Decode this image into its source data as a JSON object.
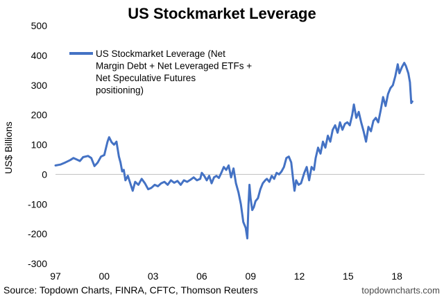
{
  "chart_data": {
    "type": "line",
    "title": "US Stockmarket Leverage",
    "ylabel": "US$ Billions",
    "xlabel": "",
    "ylim": [
      -300,
      500
    ],
    "yticks": [
      500,
      400,
      300,
      200,
      100,
      0,
      -100,
      -200,
      -300
    ],
    "xlim": [
      1997,
      2019.7
    ],
    "xticks": [
      {
        "x": 1997,
        "label": "97"
      },
      {
        "x": 2000,
        "label": "00"
      },
      {
        "x": 2003,
        "label": "03"
      },
      {
        "x": 2006,
        "label": "06"
      },
      {
        "x": 2009,
        "label": "09"
      },
      {
        "x": 2012,
        "label": "12"
      },
      {
        "x": 2015,
        "label": "15"
      },
      {
        "x": 2018,
        "label": "18"
      }
    ],
    "grid": false,
    "legend_position": "top-left",
    "series": [
      {
        "name": "US Stockmarket Leverage (Net Margin Debt + Net Leveraged ETFs + Net Speculative Futures positioning)",
        "color": "#4472c4",
        "points": [
          [
            1997.0,
            30
          ],
          [
            1997.3,
            33
          ],
          [
            1997.6,
            40
          ],
          [
            1997.9,
            48
          ],
          [
            1998.1,
            55
          ],
          [
            1998.3,
            50
          ],
          [
            1998.5,
            45
          ],
          [
            1998.7,
            58
          ],
          [
            1999.0,
            62
          ],
          [
            1999.2,
            55
          ],
          [
            1999.4,
            28
          ],
          [
            1999.6,
            40
          ],
          [
            1999.8,
            60
          ],
          [
            2000.0,
            65
          ],
          [
            2000.2,
            110
          ],
          [
            2000.3,
            125
          ],
          [
            2000.45,
            108
          ],
          [
            2000.6,
            100
          ],
          [
            2000.75,
            110
          ],
          [
            2000.9,
            60
          ],
          [
            2001.0,
            40
          ],
          [
            2001.1,
            10
          ],
          [
            2001.2,
            15
          ],
          [
            2001.3,
            -20
          ],
          [
            2001.45,
            -5
          ],
          [
            2001.6,
            -30
          ],
          [
            2001.75,
            -55
          ],
          [
            2001.9,
            -25
          ],
          [
            2002.1,
            -35
          ],
          [
            2002.3,
            -15
          ],
          [
            2002.5,
            -30
          ],
          [
            2002.7,
            -50
          ],
          [
            2002.9,
            -45
          ],
          [
            2003.1,
            -35
          ],
          [
            2003.3,
            -40
          ],
          [
            2003.5,
            -30
          ],
          [
            2003.7,
            -25
          ],
          [
            2003.9,
            -35
          ],
          [
            2004.1,
            -20
          ],
          [
            2004.3,
            -28
          ],
          [
            2004.5,
            -22
          ],
          [
            2004.7,
            -35
          ],
          [
            2004.9,
            -20
          ],
          [
            2005.1,
            -25
          ],
          [
            2005.3,
            -18
          ],
          [
            2005.5,
            -10
          ],
          [
            2005.7,
            -20
          ],
          [
            2005.9,
            -15
          ],
          [
            2006.0,
            5
          ],
          [
            2006.15,
            -5
          ],
          [
            2006.3,
            -20
          ],
          [
            2006.45,
            -5
          ],
          [
            2006.6,
            -30
          ],
          [
            2006.75,
            -10
          ],
          [
            2006.9,
            -5
          ],
          [
            2007.05,
            -12
          ],
          [
            2007.2,
            5
          ],
          [
            2007.35,
            25
          ],
          [
            2007.5,
            15
          ],
          [
            2007.65,
            30
          ],
          [
            2007.8,
            -10
          ],
          [
            2007.95,
            20
          ],
          [
            2008.1,
            -30
          ],
          [
            2008.25,
            -60
          ],
          [
            2008.4,
            -100
          ],
          [
            2008.55,
            -160
          ],
          [
            2008.7,
            -180
          ],
          [
            2008.8,
            -215
          ],
          [
            2008.87,
            -100
          ],
          [
            2008.93,
            -35
          ],
          [
            2009.0,
            -80
          ],
          [
            2009.1,
            -120
          ],
          [
            2009.2,
            -110
          ],
          [
            2009.3,
            -90
          ],
          [
            2009.45,
            -80
          ],
          [
            2009.6,
            -50
          ],
          [
            2009.75,
            -30
          ],
          [
            2009.9,
            -20
          ],
          [
            2010.0,
            -15
          ],
          [
            2010.15,
            -25
          ],
          [
            2010.3,
            -5
          ],
          [
            2010.45,
            -15
          ],
          [
            2010.6,
            5
          ],
          [
            2010.75,
            0
          ],
          [
            2010.9,
            10
          ],
          [
            2011.05,
            25
          ],
          [
            2011.2,
            55
          ],
          [
            2011.35,
            60
          ],
          [
            2011.5,
            40
          ],
          [
            2011.6,
            -10
          ],
          [
            2011.7,
            -55
          ],
          [
            2011.8,
            -20
          ],
          [
            2011.95,
            -35
          ],
          [
            2012.1,
            -30
          ],
          [
            2012.3,
            5
          ],
          [
            2012.45,
            25
          ],
          [
            2012.6,
            -20
          ],
          [
            2012.75,
            25
          ],
          [
            2012.9,
            15
          ],
          [
            2013.0,
            55
          ],
          [
            2013.15,
            90
          ],
          [
            2013.3,
            70
          ],
          [
            2013.45,
            110
          ],
          [
            2013.6,
            90
          ],
          [
            2013.75,
            130
          ],
          [
            2013.9,
            110
          ],
          [
            2014.05,
            150
          ],
          [
            2014.2,
            165
          ],
          [
            2014.35,
            140
          ],
          [
            2014.5,
            175
          ],
          [
            2014.65,
            150
          ],
          [
            2014.8,
            170
          ],
          [
            2014.95,
            175
          ],
          [
            2015.1,
            165
          ],
          [
            2015.25,
            200
          ],
          [
            2015.35,
            235
          ],
          [
            2015.5,
            190
          ],
          [
            2015.65,
            210
          ],
          [
            2015.8,
            175
          ],
          [
            2015.95,
            145
          ],
          [
            2016.1,
            110
          ],
          [
            2016.25,
            160
          ],
          [
            2016.4,
            145
          ],
          [
            2016.55,
            180
          ],
          [
            2016.7,
            190
          ],
          [
            2016.85,
            175
          ],
          [
            2017.0,
            215
          ],
          [
            2017.15,
            260
          ],
          [
            2017.3,
            230
          ],
          [
            2017.45,
            270
          ],
          [
            2017.6,
            290
          ],
          [
            2017.75,
            300
          ],
          [
            2017.9,
            330
          ],
          [
            2018.05,
            370
          ],
          [
            2018.15,
            340
          ],
          [
            2018.3,
            360
          ],
          [
            2018.45,
            375
          ],
          [
            2018.55,
            365
          ],
          [
            2018.7,
            340
          ],
          [
            2018.8,
            310
          ],
          [
            2018.88,
            240
          ],
          [
            2018.95,
            245
          ]
        ]
      }
    ]
  },
  "source": "Source: Topdown Charts, FINRA, CFTC, Thomson Reuters",
  "credit": "topdowncharts.com"
}
